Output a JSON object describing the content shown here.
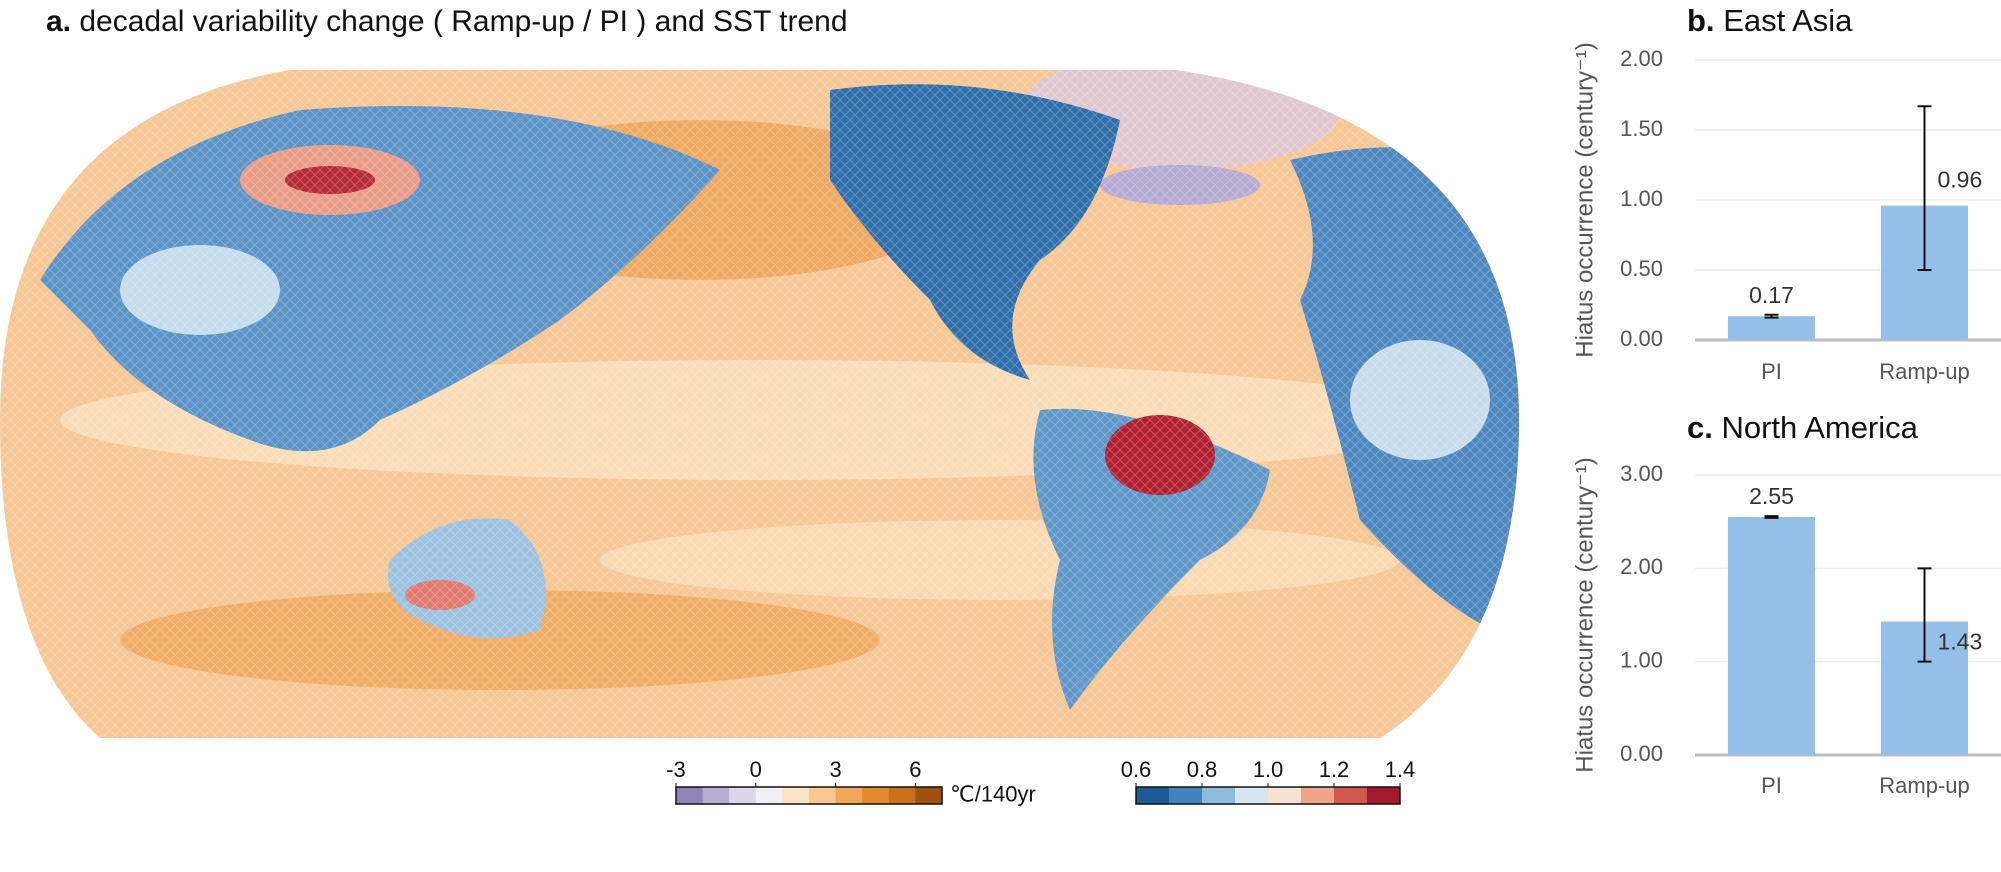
{
  "chart_data": [
    {
      "type": "map",
      "label": "a.",
      "title": "decadal variability change ( Ramp-up / PI ) and SST trend",
      "colorbars": [
        {
          "unit": "℃/140yr",
          "xlim": [
            -3,
            7
          ],
          "xticks": [
            -3,
            0,
            3,
            6
          ],
          "colors": [
            "#8f83b8",
            "#b8aed3",
            "#dcd6ea",
            "#f1eff6",
            "#fbe3c4",
            "#f8c88e",
            "#f2a85a",
            "#e38a2e",
            "#c8701a",
            "#9e520d"
          ]
        },
        {
          "xlim": [
            0.6,
            1.4
          ],
          "xticks": [
            0.6,
            0.8,
            {
              "value": 1,
              "label": "1.0"
            },
            1.2,
            1.4
          ],
          "colors": [
            "#1f5a98",
            "#3f84bd",
            "#8ebbdb",
            "#d6e6f1",
            "#f7e1d3",
            "#eea68a",
            "#d0584f",
            "#a5192e"
          ]
        }
      ]
    },
    {
      "type": "bar",
      "label": "b.",
      "title": "East Asia",
      "y_label": "Hiatus occurrence (century⁻¹)",
      "categories": [
        "PI",
        "Ramp-up"
      ],
      "values": [
        0.17,
        0.96
      ],
      "error_lower": [
        0.01,
        0.46
      ],
      "error_upper": [
        0.01,
        0.71
      ],
      "color": "#93bfe8",
      "ylim": [
        0,
        2
      ],
      "yticks": [
        {
          "value": 0,
          "label": "0.00"
        },
        {
          "value": 0.5,
          "label": "0.50"
        },
        {
          "value": 1,
          "label": "1.00"
        },
        {
          "value": 1.5,
          "label": "1.50"
        },
        {
          "value": 2,
          "label": "2.00"
        }
      ],
      "grid": true
    },
    {
      "type": "bar",
      "label": "c.",
      "title": "North America",
      "y_label": "Hiatus occurrence (century⁻¹)",
      "categories": [
        "PI",
        "Ramp-up"
      ],
      "values": [
        2.55,
        1.43
      ],
      "error_lower": [
        0.01,
        0.43
      ],
      "error_upper": [
        0.01,
        0.57
      ],
      "color": "#93bfe8",
      "ylim": [
        0,
        3
      ],
      "yticks": [
        {
          "value": 0,
          "label": "0.00"
        },
        {
          "value": 1,
          "label": "1.00"
        },
        {
          "value": 2,
          "label": "2.00"
        },
        {
          "value": 3,
          "label": "3.00"
        }
      ],
      "grid": true
    }
  ]
}
